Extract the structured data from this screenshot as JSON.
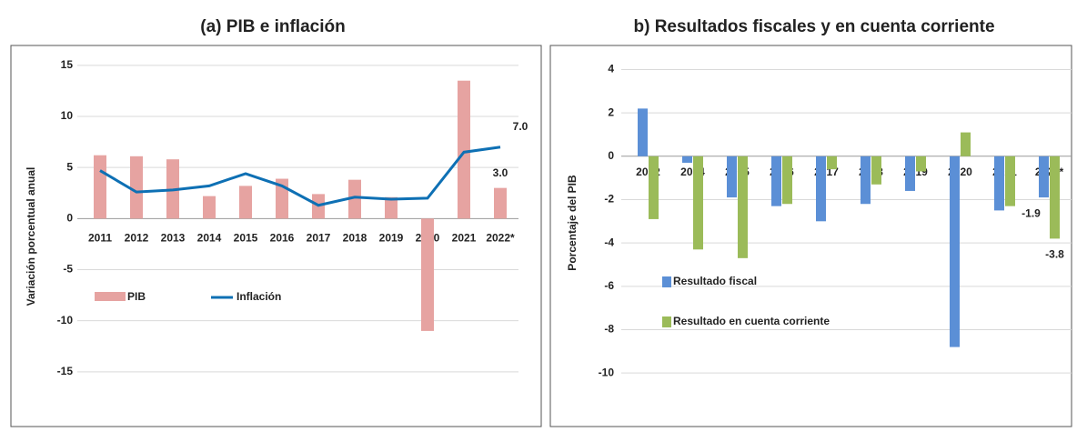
{
  "chart_data": [
    {
      "type": "bar",
      "title": "(a) PIB e inflación",
      "y_label": "Variación porcentual anual",
      "categories": [
        "2011",
        "2012",
        "2013",
        "2014",
        "2015",
        "2016",
        "2017",
        "2018",
        "2019",
        "2020",
        "2021",
        "2022*"
      ],
      "series": [
        {
          "name": "PIB",
          "type": "bar",
          "color": "#e6a3a1",
          "values": [
            6.2,
            6.1,
            5.8,
            2.2,
            3.2,
            3.9,
            2.4,
            3.8,
            2.1,
            -11.0,
            13.5,
            3.0
          ],
          "value_labels": [
            null,
            null,
            null,
            null,
            null,
            null,
            null,
            null,
            null,
            null,
            null,
            "3.0"
          ]
        },
        {
          "name": "Inflación",
          "type": "line",
          "color": "#0e70b4",
          "values": [
            4.7,
            2.6,
            2.8,
            3.2,
            4.4,
            3.2,
            1.3,
            2.1,
            1.9,
            2.0,
            6.5,
            7.0
          ],
          "value_labels": [
            null,
            null,
            null,
            null,
            null,
            null,
            null,
            null,
            null,
            null,
            null,
            "7.0"
          ]
        }
      ],
      "ylim": [
        -20,
        16.5
      ],
      "yticks": [
        15,
        10,
        5,
        0,
        -5,
        -10,
        -15
      ],
      "grid": true,
      "legend": "center-left"
    },
    {
      "type": "bar",
      "title": "b) Resultados fiscales y en cuenta corriente",
      "y_label": "Porcentaje del PIB",
      "categories": [
        "2012",
        "2014",
        "2015",
        "2016",
        "2017",
        "2018",
        "2019",
        "2020",
        "2021",
        "2022*"
      ],
      "series": [
        {
          "name": "Resultado fiscal",
          "type": "bar",
          "color": "#5b8fd6",
          "values": [
            2.2,
            -0.3,
            -1.9,
            -2.3,
            -3.0,
            -2.2,
            -1.6,
            -8.8,
            -2.5,
            -1.9
          ],
          "value_labels": [
            null,
            null,
            null,
            null,
            null,
            null,
            null,
            null,
            null,
            "-1.9"
          ]
        },
        {
          "name": "Resultado en cuenta corriente",
          "type": "bar",
          "color": "#9bbb59",
          "values": [
            -2.9,
            -4.3,
            -4.7,
            -2.2,
            -0.6,
            -1.3,
            -0.7,
            1.1,
            -2.3,
            -3.8
          ],
          "value_labels": [
            null,
            null,
            null,
            null,
            null,
            null,
            null,
            null,
            null,
            "-3.8"
          ]
        }
      ],
      "ylim": [
        -12.3,
        4.9
      ],
      "yticks": [
        4,
        2,
        0,
        -2,
        -4,
        -6,
        -8,
        -10
      ],
      "grid": true,
      "legend": "center-left"
    }
  ]
}
